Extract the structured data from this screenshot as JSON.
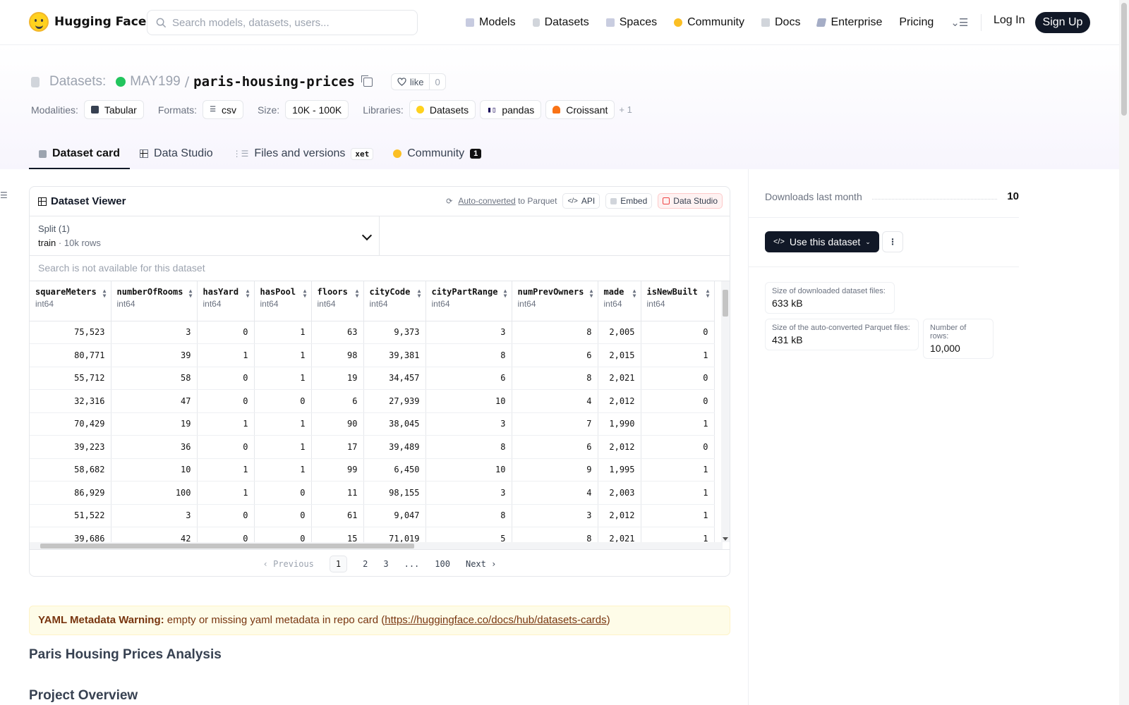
{
  "nav": {
    "brand": "Hugging Face",
    "search_placeholder": "Search models, datasets, users...",
    "links": [
      "Models",
      "Datasets",
      "Spaces",
      "Community",
      "Docs",
      "Enterprise",
      "Pricing"
    ],
    "login": "Log In",
    "signup": "Sign Up"
  },
  "repo": {
    "type_label": "Datasets:",
    "owner": "MAY199",
    "separator": "/",
    "name": "paris-housing-prices",
    "like_label": "like",
    "like_count": "0"
  },
  "tags": {
    "modalities_label": "Modalities:",
    "modality": "Tabular",
    "formats_label": "Formats:",
    "format": "csv",
    "size_label": "Size:",
    "size": "10K - 100K",
    "libraries_label": "Libraries:",
    "libraries": [
      "Datasets",
      "pandas",
      "Croissant"
    ],
    "more": "+ 1"
  },
  "tabs": [
    {
      "label": "Dataset card"
    },
    {
      "label": "Data Studio"
    },
    {
      "label": "Files and versions",
      "badge": "xet"
    },
    {
      "label": "Community",
      "badge": "1"
    }
  ],
  "viewer": {
    "title": "Dataset Viewer",
    "auto_converted": "Auto-converted",
    "to_parquet": "to Parquet",
    "api": "API",
    "embed": "Embed",
    "data_studio": "Data Studio",
    "split_label": "Split (1)",
    "split_name": "train",
    "split_dot": "·",
    "split_rows": "10k rows",
    "search_na": "Search is not available for this dataset",
    "columns": [
      {
        "name": "squareMeters",
        "dtype": "int64"
      },
      {
        "name": "numberOfRooms",
        "dtype": "int64"
      },
      {
        "name": "hasYard",
        "dtype": "int64"
      },
      {
        "name": "hasPool",
        "dtype": "int64"
      },
      {
        "name": "floors",
        "dtype": "int64"
      },
      {
        "name": "cityCode",
        "dtype": "int64"
      },
      {
        "name": "cityPartRange",
        "dtype": "int64"
      },
      {
        "name": "numPrevOwners",
        "dtype": "int64"
      },
      {
        "name": "made",
        "dtype": "int64"
      },
      {
        "name": "isNewBuilt",
        "dtype": "int64"
      }
    ],
    "rows": [
      [
        "75,523",
        "3",
        "0",
        "1",
        "63",
        "9,373",
        "3",
        "8",
        "2,005",
        "0"
      ],
      [
        "80,771",
        "39",
        "1",
        "1",
        "98",
        "39,381",
        "8",
        "6",
        "2,015",
        "1"
      ],
      [
        "55,712",
        "58",
        "0",
        "1",
        "19",
        "34,457",
        "6",
        "8",
        "2,021",
        "0"
      ],
      [
        "32,316",
        "47",
        "0",
        "0",
        "6",
        "27,939",
        "10",
        "4",
        "2,012",
        "0"
      ],
      [
        "70,429",
        "19",
        "1",
        "1",
        "90",
        "38,045",
        "3",
        "7",
        "1,990",
        "1"
      ],
      [
        "39,223",
        "36",
        "0",
        "1",
        "17",
        "39,489",
        "8",
        "6",
        "2,012",
        "0"
      ],
      [
        "58,682",
        "10",
        "1",
        "1",
        "99",
        "6,450",
        "10",
        "9",
        "1,995",
        "1"
      ],
      [
        "86,929",
        "100",
        "1",
        "0",
        "11",
        "98,155",
        "3",
        "4",
        "2,003",
        "1"
      ],
      [
        "51,522",
        "3",
        "0",
        "0",
        "61",
        "9,047",
        "8",
        "3",
        "2,012",
        "1"
      ],
      [
        "39,686",
        "42",
        "0",
        "0",
        "15",
        "71,019",
        "5",
        "8",
        "2,021",
        "1"
      ]
    ],
    "pager": {
      "previous": "Previous",
      "pages": [
        "1",
        "2",
        "3",
        "...",
        "100"
      ],
      "current": "1",
      "next": "Next"
    }
  },
  "readme": {
    "warning_bold": "YAML Metadata Warning:",
    "warning_text": " empty or missing yaml metadata in repo card (",
    "warning_link": "https://huggingface.co/docs/hub/datasets-cards",
    "warning_end": ")",
    "h1": "Paris Housing Prices Analysis",
    "h2": "Project Overview"
  },
  "sidebar": {
    "downloads_label": "Downloads last month",
    "downloads_value": "10",
    "use_button": "Use this dataset",
    "stats": [
      {
        "label": "Size of downloaded dataset files:",
        "value": "633 kB"
      },
      {
        "label": "Size of the auto-converted Parquet files:",
        "value": "431 kB"
      },
      {
        "label": "Number of rows:",
        "value": "10,000"
      }
    ]
  },
  "colors": {
    "brand_yellow": "#ffd21e",
    "dark_button": "#111827",
    "status_green": "#22c55e",
    "warning_bg": "#fefce8"
  }
}
